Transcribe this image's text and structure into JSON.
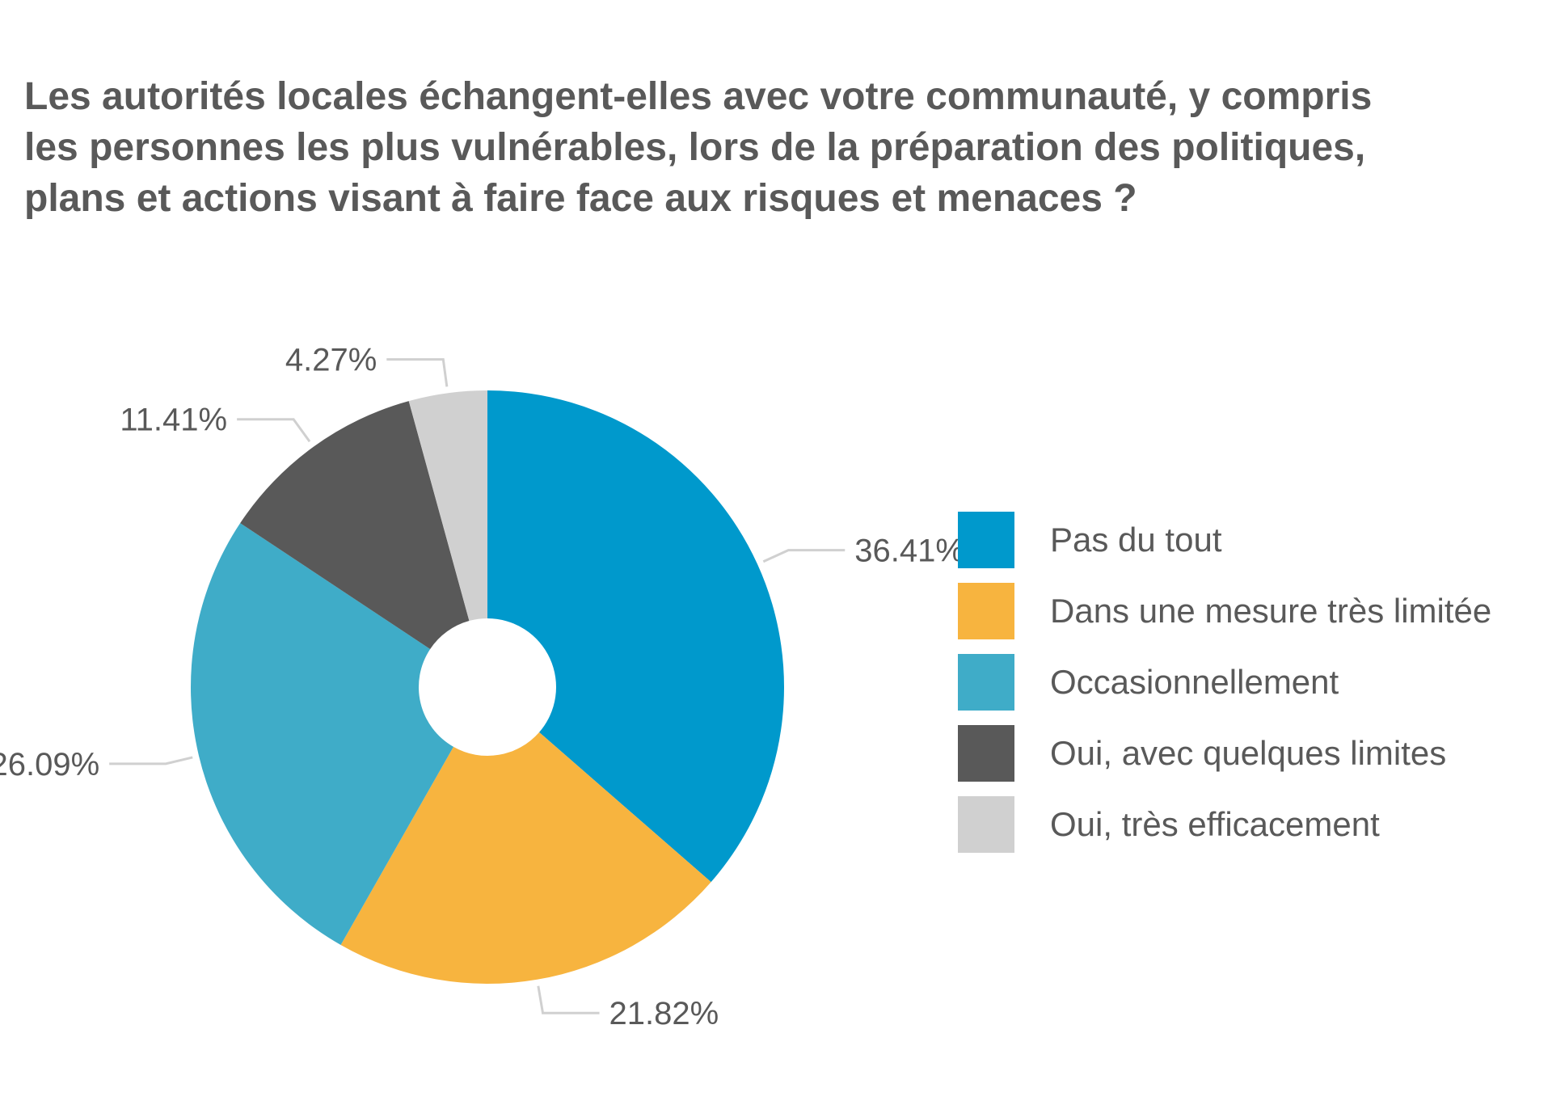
{
  "title_lines": [
    "Les autorités locales échangent-elles avec votre communauté, y compris",
    "les personnes les plus vulnérables, lors de la préparation des politiques,",
    "plans et actions visant à faire face aux risques et menaces ?"
  ],
  "chart_data": {
    "type": "pie",
    "title": "Les autorités locales échangent-elles avec votre communauté, y compris les personnes les plus vulnérables, lors de la préparation des politiques, plans et actions visant à faire face aux risques et menaces ?",
    "style": "donut",
    "legend_position": "right",
    "categories": [
      "Pas du tout",
      "Dans une mesure très limitée",
      "Occasionnellement",
      "Oui, avec quelques limites",
      "Oui, très efficacement"
    ],
    "values": [
      36.41,
      21.82,
      26.09,
      11.41,
      4.27
    ],
    "labels": [
      "36.41%",
      "21.82%",
      "26.09%",
      "11.41%",
      "4.27%"
    ],
    "colors": [
      "#0099CC",
      "#F7B43F",
      "#3FACC8",
      "#595959",
      "#D0D0D0"
    ]
  }
}
